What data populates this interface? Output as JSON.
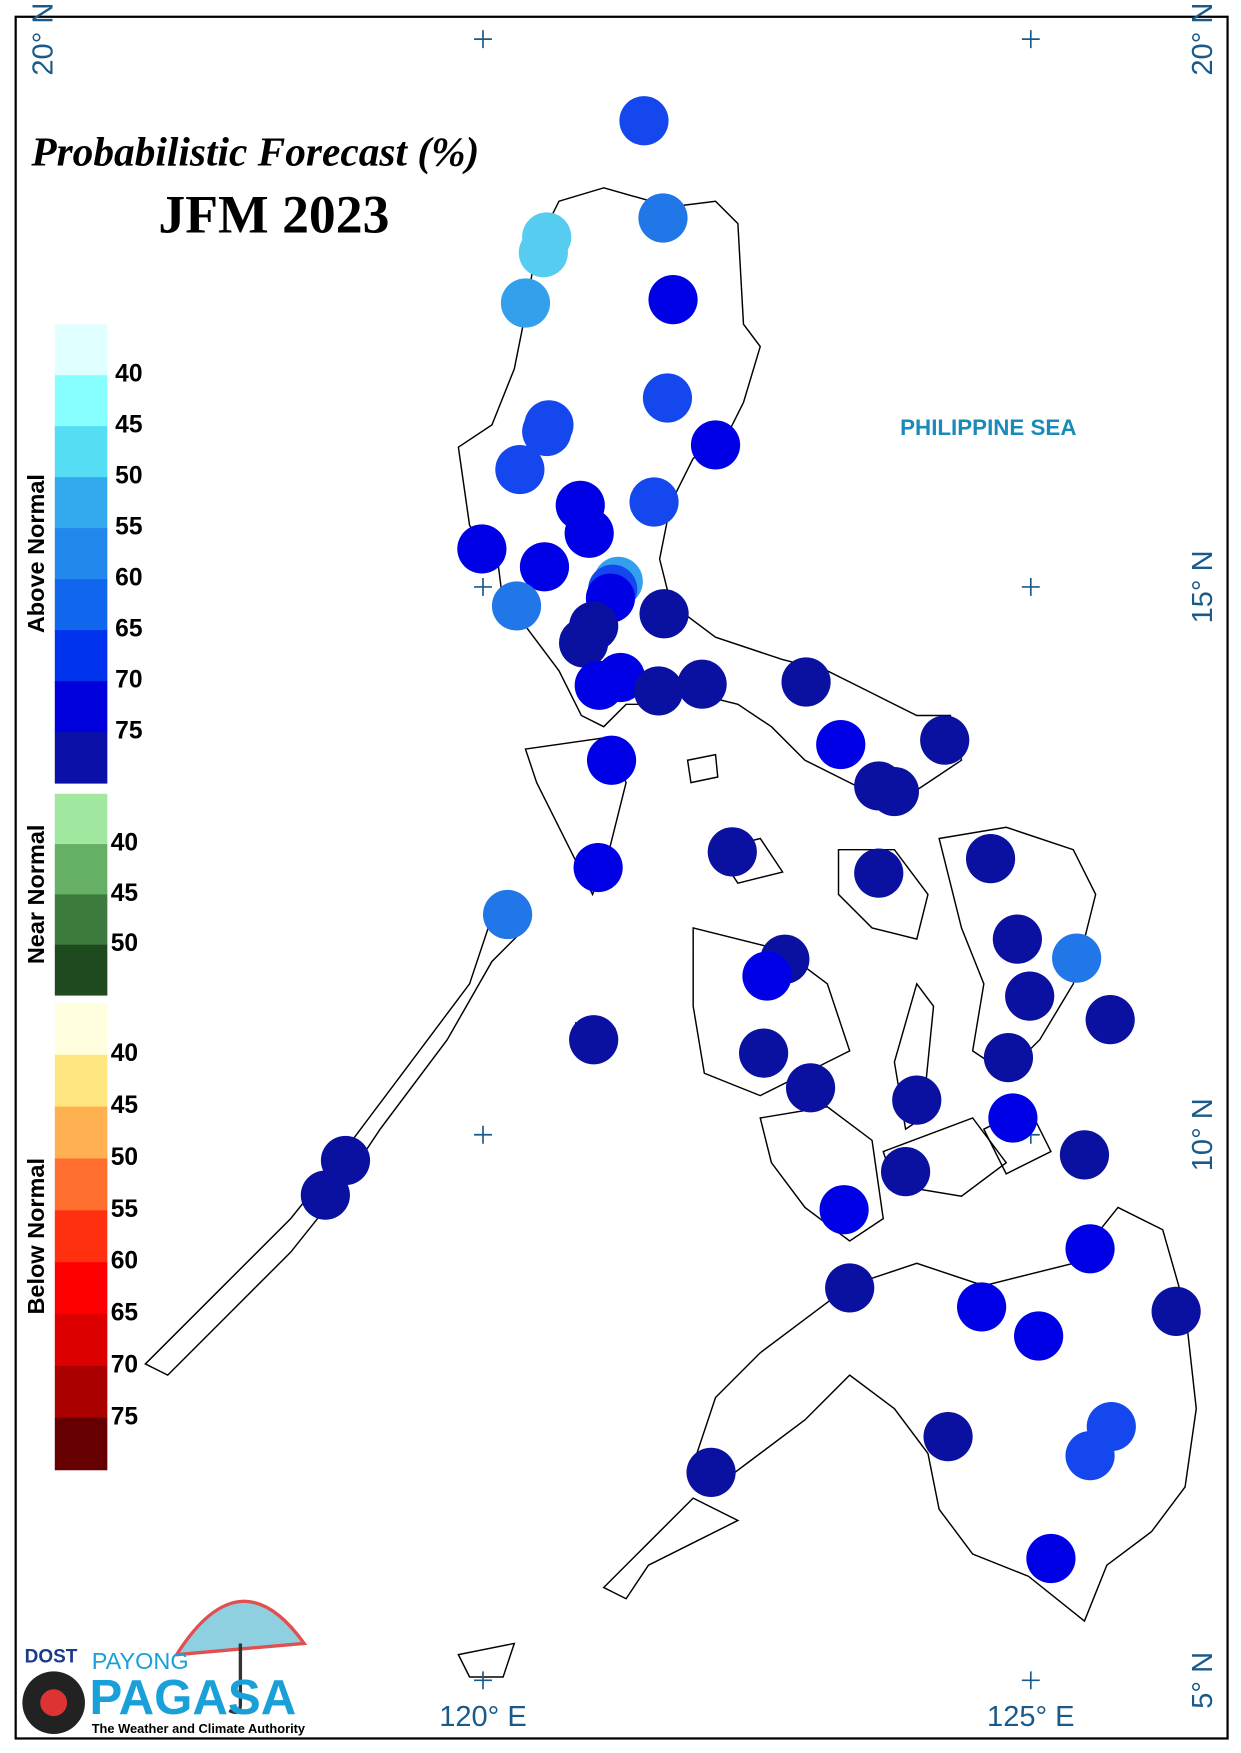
{
  "map": {
    "title": "Probabilistic Forecast (%)",
    "subtitle": "JFM 2023",
    "sea_label": "PHILIPPINE SEA",
    "latitudes": {
      "left": [
        "20° N"
      ],
      "right": [
        "20° N",
        "15° N",
        "10° N",
        "5° N"
      ]
    },
    "longitudes": [
      "120° E",
      "125° E"
    ],
    "legend": [
      {
        "name": "Above Normal",
        "ticks": [
          40,
          45,
          50,
          55,
          60,
          65,
          70,
          75
        ]
      },
      {
        "name": "Near Normal",
        "ticks": [
          40,
          45,
          50
        ]
      },
      {
        "name": "Below Normal",
        "ticks": [
          40,
          45,
          50,
          55,
          60,
          65,
          70,
          75
        ]
      }
    ],
    "logo": {
      "agency": "DOST",
      "brand_top": "PAYONG",
      "brand": "PAGASA",
      "tagline": "The Weather and Climate Authority"
    }
  }
}
